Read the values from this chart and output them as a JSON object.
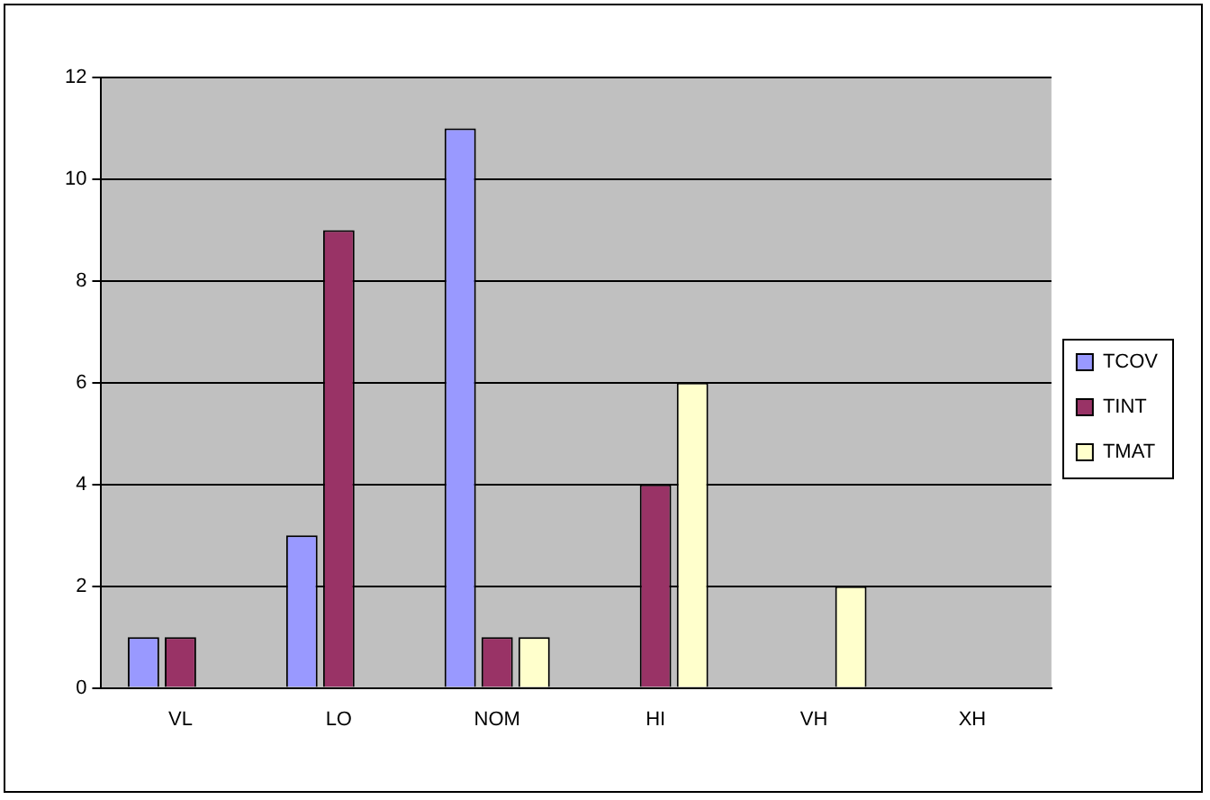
{
  "chart_data": {
    "type": "bar",
    "categories": [
      "VL",
      "LO",
      "NOM",
      "HI",
      "VH",
      "XH"
    ],
    "series": [
      {
        "name": "TCOV",
        "color": "#9999ff",
        "values": [
          1,
          3,
          11,
          0,
          0,
          0
        ]
      },
      {
        "name": "TINT",
        "color": "#993366",
        "values": [
          1,
          9,
          1,
          4,
          0,
          0
        ]
      },
      {
        "name": "TMAT",
        "color": "#ffffcc",
        "values": [
          null,
          null,
          1,
          6,
          2,
          0
        ]
      }
    ],
    "ylim": [
      0,
      12
    ],
    "yticks": [
      0,
      2,
      4,
      6,
      8,
      10,
      12
    ],
    "grid": "y",
    "legend": "right"
  }
}
